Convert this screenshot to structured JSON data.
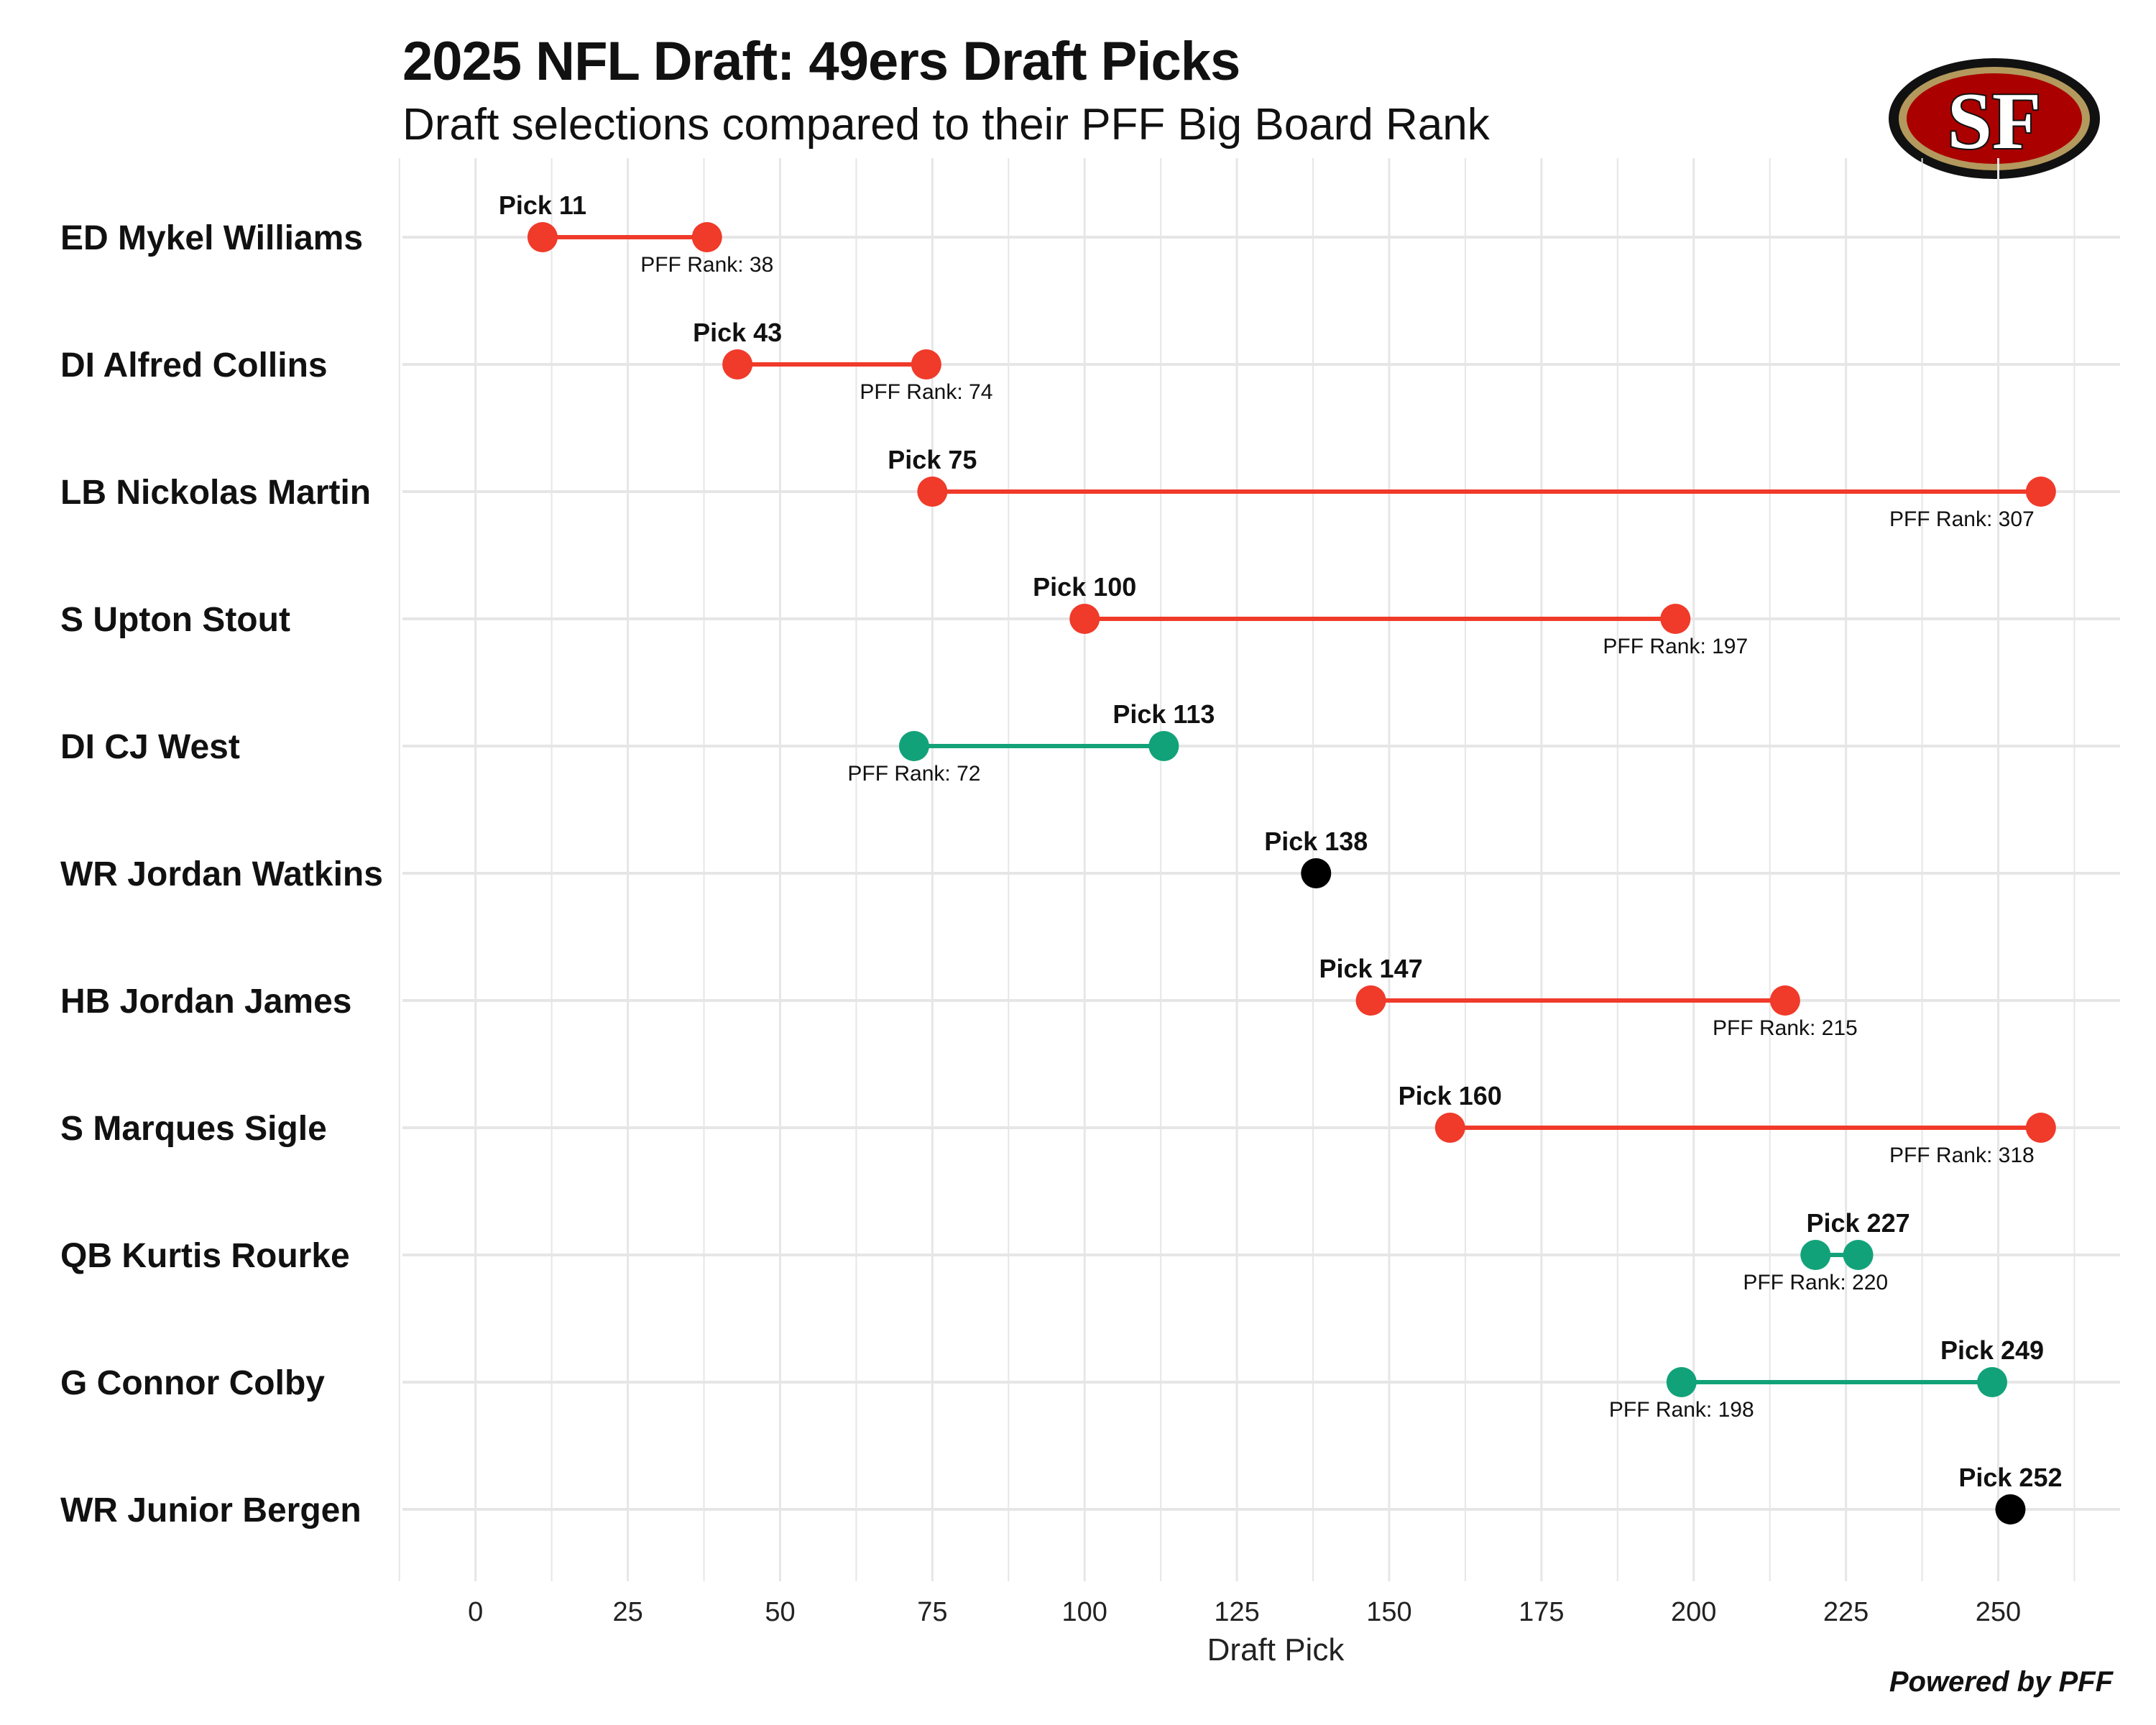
{
  "header": {
    "title": "2025 NFL Draft: 49ers Draft Picks",
    "subtitle": "Draft selections compared to their PFF Big Board Rank"
  },
  "logo": {
    "text": "SF",
    "colors": {
      "outer": "#111111",
      "ring": "#b3995d",
      "field": "#aa0000",
      "letters": "#ffffff"
    }
  },
  "footer": {
    "text": "Powered by PFF"
  },
  "colors": {
    "reach": "#f03a2a",
    "value": "#12a27a",
    "neutral": "#000000",
    "grid": "#e6e6e6"
  },
  "chart_data": {
    "type": "dumbbell",
    "title": "2025 NFL Draft: 49ers Draft Picks",
    "subtitle": "Draft selections compared to their PFF Big Board Rank",
    "xlabel": "Draft Pick",
    "xlim": [
      -12,
      270
    ],
    "xticks": [
      0,
      25,
      50,
      75,
      100,
      125,
      150,
      175,
      200,
      225,
      250
    ],
    "pick_prefix": "Pick ",
    "rank_prefix": "PFF Rank: ",
    "players": [
      {
        "name": "ED Mykel Williams",
        "pick": 11,
        "pff_rank": 38,
        "status": "reach"
      },
      {
        "name": "DI Alfred Collins",
        "pick": 43,
        "pff_rank": 74,
        "status": "reach"
      },
      {
        "name": "LB Nickolas Martin",
        "pick": 75,
        "pff_rank": 307,
        "status": "reach"
      },
      {
        "name": "S Upton Stout",
        "pick": 100,
        "pff_rank": 197,
        "status": "reach"
      },
      {
        "name": "DI CJ West",
        "pick": 113,
        "pff_rank": 72,
        "status": "value"
      },
      {
        "name": "WR Jordan Watkins",
        "pick": 138,
        "pff_rank": null,
        "status": "unranked"
      },
      {
        "name": "HB Jordan James",
        "pick": 147,
        "pff_rank": 215,
        "status": "reach"
      },
      {
        "name": "S Marques Sigle",
        "pick": 160,
        "pff_rank": 318,
        "status": "reach"
      },
      {
        "name": "QB Kurtis Rourke",
        "pick": 227,
        "pff_rank": 220,
        "status": "value"
      },
      {
        "name": "G Connor Colby",
        "pick": 249,
        "pff_rank": 198,
        "status": "value"
      },
      {
        "name": "WR Junior Bergen",
        "pick": 252,
        "pff_rank": null,
        "status": "unranked"
      }
    ]
  }
}
